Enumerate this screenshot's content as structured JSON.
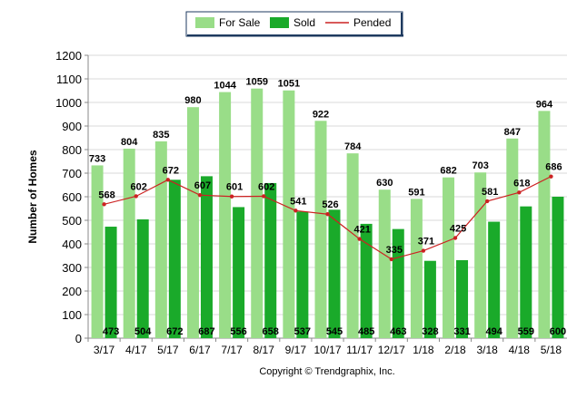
{
  "chart_data": {
    "type": "bar",
    "categories": [
      "3/17",
      "4/17",
      "5/17",
      "6/17",
      "7/17",
      "8/17",
      "9/17",
      "10/17",
      "11/17",
      "12/17",
      "1/18",
      "2/18",
      "3/18",
      "4/18",
      "5/18"
    ],
    "series": [
      {
        "name": "For Sale",
        "type": "bar",
        "color": "#99dd88",
        "values": [
          733,
          804,
          835,
          980,
          1044,
          1059,
          1051,
          922,
          784,
          630,
          591,
          682,
          703,
          847,
          964
        ]
      },
      {
        "name": "Sold",
        "type": "bar",
        "color": "#1aaa2a",
        "values": [
          473,
          504,
          672,
          687,
          556,
          658,
          537,
          545,
          485,
          463,
          328,
          331,
          494,
          559,
          600
        ]
      },
      {
        "name": "Pended",
        "type": "line",
        "color": "#cc2222",
        "values": [
          568,
          602,
          672,
          607,
          601,
          602,
          541,
          526,
          421,
          335,
          371,
          425,
          581,
          618,
          686
        ]
      }
    ],
    "ylabel": "Number of Homes",
    "xlabel": "",
    "ylim": [
      0,
      1200
    ],
    "yticks": [
      "0",
      "100",
      "200",
      "300",
      "400",
      "500",
      "600",
      "700",
      "800",
      "900",
      "1000",
      "1100",
      "1200"
    ],
    "grid": true,
    "legend_position": "top-center"
  },
  "copyright": "Copyright © Trendgraphix, Inc."
}
